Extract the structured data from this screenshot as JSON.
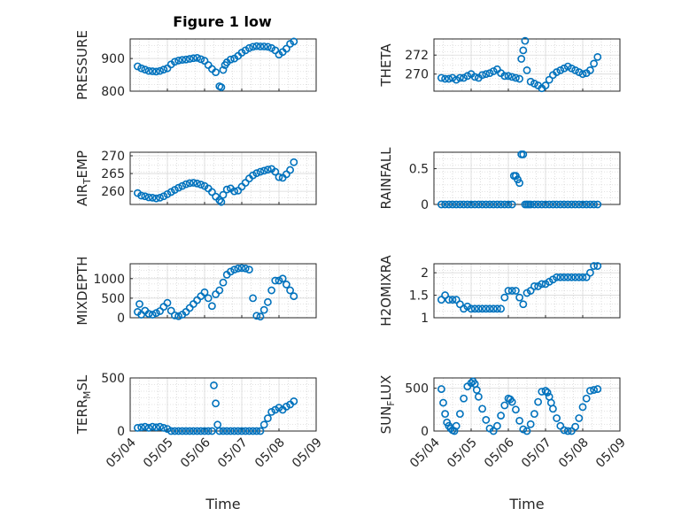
{
  "figure": {
    "title": "Figure 1 low",
    "xlabel": "Time",
    "marker_color": "#0072bd",
    "x_ticks": [
      "05/04",
      "05/05",
      "05/06",
      "05/07",
      "05/08",
      "05/09"
    ]
  },
  "chart_data": [
    {
      "type": "scatter",
      "ylabel": "PRESSURE",
      "yticks": [
        800,
        900
      ],
      "ylim": [
        800,
        960
      ],
      "xlim": [
        0,
        5
      ],
      "x": [
        0.2,
        0.3,
        0.4,
        0.5,
        0.6,
        0.7,
        0.8,
        0.9,
        1.0,
        1.1,
        1.2,
        1.3,
        1.4,
        1.5,
        1.6,
        1.7,
        1.8,
        1.9,
        2.0,
        2.1,
        2.2,
        2.3,
        2.4,
        2.45,
        2.5,
        2.55,
        2.6,
        2.7,
        2.8,
        2.9,
        3.0,
        3.1,
        3.2,
        3.3,
        3.4,
        3.5,
        3.6,
        3.7,
        3.8,
        3.9,
        4.0,
        4.1,
        4.2,
        4.3,
        4.4
      ],
      "y": [
        876,
        870,
        866,
        862,
        861,
        860,
        862,
        866,
        870,
        882,
        890,
        894,
        896,
        897,
        899,
        901,
        902,
        898,
        893,
        880,
        868,
        858,
        815,
        812,
        865,
        880,
        888,
        897,
        900,
        908,
        918,
        925,
        932,
        936,
        938,
        937,
        937,
        936,
        932,
        925,
        912,
        920,
        930,
        945,
        952
      ]
    },
    {
      "type": "scatter",
      "ylabel": "THETA",
      "yticks": [
        270,
        272
      ],
      "ylim": [
        268.2,
        273.7
      ],
      "xlim": [
        0,
        5
      ],
      "x": [
        0.2,
        0.3,
        0.4,
        0.5,
        0.6,
        0.7,
        0.8,
        0.9,
        1.0,
        1.1,
        1.2,
        1.3,
        1.4,
        1.5,
        1.6,
        1.7,
        1.8,
        1.9,
        2.0,
        2.1,
        2.2,
        2.3,
        2.35,
        2.4,
        2.45,
        2.5,
        2.6,
        2.7,
        2.8,
        2.9,
        3.0,
        3.1,
        3.2,
        3.3,
        3.4,
        3.5,
        3.6,
        3.7,
        3.8,
        3.9,
        4.0,
        4.1,
        4.2,
        4.3,
        4.4
      ],
      "y": [
        269.6,
        269.5,
        269.5,
        269.6,
        269.4,
        269.6,
        269.6,
        269.8,
        270.0,
        269.7,
        269.6,
        269.9,
        270.0,
        270.1,
        270.3,
        270.5,
        270.1,
        269.8,
        269.8,
        269.7,
        269.6,
        269.5,
        271.6,
        272.5,
        273.5,
        270.4,
        269.2,
        269.0,
        268.8,
        268.5,
        268.8,
        269.4,
        269.9,
        270.2,
        270.4,
        270.6,
        270.8,
        270.6,
        270.4,
        270.2,
        270.0,
        270.1,
        270.4,
        271.1,
        271.8
      ]
    },
    {
      "type": "scatter",
      "ylabel": "AIR_TEMP",
      "yticks": [
        260,
        265,
        270
      ],
      "ylim": [
        256.3,
        271
      ],
      "xlim": [
        0,
        5
      ],
      "x": [
        0.2,
        0.3,
        0.4,
        0.5,
        0.6,
        0.7,
        0.8,
        0.9,
        1.0,
        1.1,
        1.2,
        1.3,
        1.4,
        1.5,
        1.6,
        1.7,
        1.8,
        1.9,
        2.0,
        2.1,
        2.2,
        2.3,
        2.4,
        2.45,
        2.5,
        2.6,
        2.7,
        2.8,
        2.9,
        3.0,
        3.1,
        3.2,
        3.3,
        3.4,
        3.5,
        3.6,
        3.7,
        3.8,
        3.9,
        4.0,
        4.1,
        4.2,
        4.3,
        4.4
      ],
      "y": [
        259.5,
        258.8,
        258.6,
        258.3,
        258.2,
        258.0,
        258.2,
        258.6,
        259.2,
        259.8,
        260.4,
        261.0,
        261.5,
        262.0,
        262.3,
        262.4,
        262.2,
        261.9,
        261.5,
        260.8,
        259.8,
        258.5,
        257.5,
        257.0,
        259.0,
        260.5,
        260.8,
        260.0,
        260.2,
        261.3,
        262.4,
        263.6,
        264.5,
        265.1,
        265.5,
        265.8,
        266.1,
        266.3,
        265.5,
        264.0,
        263.8,
        264.8,
        266.0,
        268.2
      ]
    },
    {
      "type": "scatter",
      "ylabel": "RAINFALL",
      "yticks": [
        0,
        0.5
      ],
      "ylim": [
        0,
        0.73
      ],
      "xlim": [
        0,
        5
      ],
      "x": [
        0.2,
        0.3,
        0.4,
        0.5,
        0.6,
        0.7,
        0.8,
        0.9,
        1.0,
        1.1,
        1.2,
        1.3,
        1.4,
        1.5,
        1.6,
        1.7,
        1.8,
        1.9,
        2.0,
        2.1,
        2.15,
        2.2,
        2.25,
        2.3,
        2.35,
        2.4,
        2.45,
        2.5,
        2.55,
        2.6,
        2.7,
        2.8,
        2.9,
        3.0,
        3.1,
        3.2,
        3.3,
        3.4,
        3.5,
        3.6,
        3.7,
        3.8,
        3.9,
        4.0,
        4.1,
        4.2,
        4.3,
        4.4
      ],
      "y": [
        0,
        0,
        0,
        0,
        0,
        0,
        0,
        0,
        0,
        0,
        0,
        0,
        0,
        0,
        0,
        0,
        0,
        0,
        0,
        0,
        0.4,
        0.4,
        0.35,
        0.3,
        0.7,
        0.7,
        0,
        0,
        0,
        0,
        0,
        0,
        0,
        0,
        0,
        0,
        0,
        0,
        0,
        0,
        0,
        0,
        0,
        0,
        0,
        0,
        0,
        0
      ]
    },
    {
      "type": "scatter",
      "ylabel": "MIXDEPTH",
      "yticks": [
        0,
        500,
        1000
      ],
      "ylim": [
        0,
        1380
      ],
      "xlim": [
        0,
        5
      ],
      "x": [
        0.2,
        0.25,
        0.3,
        0.4,
        0.5,
        0.6,
        0.7,
        0.8,
        0.9,
        1.0,
        1.1,
        1.2,
        1.3,
        1.4,
        1.5,
        1.6,
        1.7,
        1.8,
        1.9,
        2.0,
        2.1,
        2.2,
        2.3,
        2.4,
        2.5,
        2.6,
        2.7,
        2.8,
        2.9,
        3.0,
        3.1,
        3.2,
        3.3,
        3.4,
        3.5,
        3.6,
        3.7,
        3.8,
        3.9,
        4.0,
        4.1,
        4.2,
        4.3,
        4.4
      ],
      "y": [
        150,
        350,
        80,
        180,
        100,
        80,
        120,
        170,
        280,
        380,
        180,
        60,
        40,
        80,
        150,
        250,
        350,
        450,
        550,
        650,
        500,
        300,
        600,
        700,
        900,
        1100,
        1180,
        1230,
        1260,
        1270,
        1260,
        1230,
        500,
        50,
        30,
        200,
        400,
        700,
        950,
        950,
        1000,
        850,
        700,
        550
      ]
    },
    {
      "type": "scatter",
      "ylabel": "H2OMIXRA",
      "yticks": [
        1,
        1.5,
        2
      ],
      "ylim": [
        1,
        2.2
      ],
      "xlim": [
        0,
        5
      ],
      "x": [
        0.2,
        0.3,
        0.4,
        0.5,
        0.6,
        0.7,
        0.8,
        0.9,
        1.0,
        1.1,
        1.2,
        1.3,
        1.4,
        1.5,
        1.6,
        1.7,
        1.8,
        1.9,
        2.0,
        2.1,
        2.2,
        2.3,
        2.4,
        2.5,
        2.6,
        2.7,
        2.8,
        2.9,
        3.0,
        3.1,
        3.2,
        3.3,
        3.4,
        3.5,
        3.6,
        3.7,
        3.8,
        3.9,
        4.0,
        4.1,
        4.2,
        4.3,
        4.4
      ],
      "y": [
        1.4,
        1.5,
        1.4,
        1.4,
        1.4,
        1.3,
        1.2,
        1.25,
        1.2,
        1.2,
        1.2,
        1.2,
        1.2,
        1.2,
        1.2,
        1.2,
        1.2,
        1.45,
        1.6,
        1.6,
        1.6,
        1.45,
        1.3,
        1.55,
        1.6,
        1.7,
        1.7,
        1.75,
        1.75,
        1.8,
        1.85,
        1.9,
        1.9,
        1.9,
        1.9,
        1.9,
        1.9,
        1.9,
        1.9,
        1.9,
        2.0,
        2.15,
        2.15
      ]
    },
    {
      "type": "scatter",
      "ylabel": "TERR_MSL",
      "yticks": [
        0,
        500
      ],
      "ylim": [
        0,
        500
      ],
      "xlim": [
        0,
        5
      ],
      "x": [
        0.2,
        0.3,
        0.4,
        0.5,
        0.6,
        0.7,
        0.8,
        0.9,
        1.0,
        1.1,
        1.2,
        1.3,
        1.4,
        1.5,
        1.6,
        1.7,
        1.8,
        1.9,
        2.0,
        2.1,
        2.2,
        2.25,
        2.3,
        2.35,
        2.4,
        2.5,
        2.6,
        2.7,
        2.8,
        2.9,
        3.0,
        3.1,
        3.2,
        3.3,
        3.4,
        3.5,
        3.6,
        3.7,
        3.8,
        3.9,
        4.0,
        4.1,
        4.2,
        4.3,
        4.4
      ],
      "y": [
        30,
        35,
        40,
        30,
        40,
        35,
        40,
        30,
        20,
        0,
        0,
        0,
        0,
        0,
        0,
        0,
        0,
        0,
        0,
        0,
        0,
        430,
        260,
        60,
        0,
        0,
        0,
        0,
        0,
        0,
        0,
        0,
        0,
        0,
        0,
        0,
        60,
        120,
        180,
        200,
        220,
        200,
        230,
        250,
        280
      ]
    },
    {
      "type": "scatter",
      "ylabel": "SUN_FLUX",
      "yticks": [
        0,
        500
      ],
      "ylim": [
        0,
        620
      ],
      "xlim": [
        0,
        5
      ],
      "x": [
        0.2,
        0.25,
        0.3,
        0.35,
        0.4,
        0.45,
        0.5,
        0.55,
        0.6,
        0.7,
        0.8,
        0.9,
        1.0,
        1.05,
        1.1,
        1.15,
        1.2,
        1.3,
        1.4,
        1.5,
        1.6,
        1.7,
        1.8,
        1.9,
        2.0,
        2.05,
        2.1,
        2.2,
        2.3,
        2.4,
        2.5,
        2.6,
        2.7,
        2.8,
        2.9,
        3.0,
        3.05,
        3.1,
        3.15,
        3.2,
        3.3,
        3.4,
        3.5,
        3.6,
        3.7,
        3.8,
        3.9,
        4.0,
        4.1,
        4.2,
        4.3,
        4.4
      ],
      "y": [
        490,
        330,
        200,
        100,
        60,
        30,
        10,
        0,
        60,
        200,
        380,
        520,
        560,
        580,
        550,
        480,
        400,
        260,
        130,
        30,
        0,
        60,
        180,
        300,
        380,
        370,
        340,
        250,
        120,
        20,
        0,
        80,
        200,
        340,
        460,
        470,
        450,
        400,
        330,
        260,
        150,
        60,
        10,
        0,
        0,
        50,
        150,
        280,
        380,
        470,
        480,
        490
      ]
    }
  ]
}
